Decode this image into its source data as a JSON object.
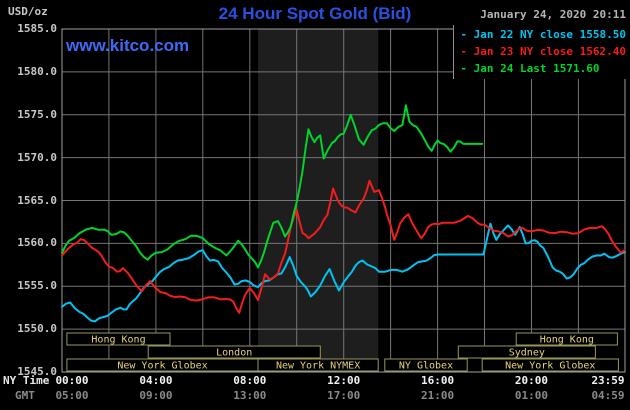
{
  "header": {
    "units": "USD/oz",
    "title": "24 Hour Spot Gold (Bid)",
    "datetime": "January 24, 2020 20:11",
    "watermark": "www.kitco.com"
  },
  "legend": [
    {
      "dash": "-",
      "label": "Jan 22 NY close 1558.50",
      "color": "#00c3f2"
    },
    {
      "dash": "-",
      "label": "Jan 23 NY close 1562.40",
      "color": "#f21d1d"
    },
    {
      "dash": "-",
      "label": "Jan 24 Last 1571.60",
      "color": "#00d32b"
    }
  ],
  "axes": {
    "ny_time_label": "NY Time",
    "gmt_label": "GMT",
    "y_ticks": [
      {
        "label": "1585.0",
        "v": 1585
      },
      {
        "label": "1580.0",
        "v": 1580
      },
      {
        "label": "1575.0",
        "v": 1575
      },
      {
        "label": "1570.0",
        "v": 1570
      },
      {
        "label": "1565.0",
        "v": 1565
      },
      {
        "label": "1560.0",
        "v": 1560
      },
      {
        "label": "1555.0",
        "v": 1555
      },
      {
        "label": "1550.0",
        "v": 1550
      },
      {
        "label": "1545.0",
        "v": 1545
      }
    ],
    "x_ticks": [
      {
        "ny": "00:00",
        "gmt": "05:00",
        "h": 0
      },
      {
        "ny": "04:00",
        "gmt": "09:00",
        "h": 4
      },
      {
        "ny": "08:00",
        "gmt": "13:00",
        "h": 8
      },
      {
        "ny": "12:00",
        "gmt": "17:00",
        "h": 12
      },
      {
        "ny": "16:00",
        "gmt": "21:00",
        "h": 16
      },
      {
        "ny": "20:00",
        "gmt": "01:00",
        "h": 20
      },
      {
        "ny": "23:59",
        "gmt": "04:59",
        "h": 23.983
      }
    ]
  },
  "sessions": [
    {
      "row": 1,
      "label": "Hong Kong",
      "start_h": 0.21,
      "end_h": 4.6
    },
    {
      "row": 1,
      "label": "Hong Kong",
      "start_h": 19.35,
      "end_h": 23.66
    },
    {
      "row": 2,
      "label": "London",
      "start_h": 3.67,
      "end_h": 11.0
    },
    {
      "row": 2,
      "label": "Sydney",
      "start_h": 16.88,
      "end_h": 22.72
    },
    {
      "row": 3,
      "label": "New York Globex",
      "start_h": 0.21,
      "end_h": 8.35
    },
    {
      "row": 3,
      "label": "New York NYMEX",
      "start_h": 8.35,
      "end_h": 13.47
    },
    {
      "row": 3,
      "label": "NY Globex",
      "start_h": 13.75,
      "end_h": 17.26
    },
    {
      "row": 3,
      "label": "New York Globex",
      "start_h": 17.9,
      "end_h": 23.7
    }
  ],
  "colors": {
    "background": "#000000",
    "plot_border": "#a0a0a0",
    "gridline": "#757575",
    "nymex_band": "#1e1e1e",
    "session_border": "#96965a",
    "session_text": "#e6d27c",
    "title_blue": "#2b50e0",
    "kitco_blue": "#3e6af5"
  },
  "chart_data": {
    "type": "line",
    "title": "24 Hour Spot Gold (Bid)",
    "xlabel": "NY Time / GMT",
    "ylabel": "USD/oz",
    "x_unit": "hours NY time",
    "xlim": [
      0,
      23.983
    ],
    "ylim": [
      1545,
      1585
    ],
    "grid": {
      "x_step_h": 2,
      "y_step": 5
    },
    "highlight_band_h": [
      8.35,
      13.47
    ],
    "legend_position": "top-right",
    "series": [
      {
        "name": "Jan 22 (NY close 1558.50)",
        "color": "#00c3f2",
        "points": [
          [
            0,
            1552.6
          ],
          [
            0.35,
            1553.1
          ],
          [
            0.75,
            1552.0
          ],
          [
            1.1,
            1551.3
          ],
          [
            1.4,
            1550.9
          ],
          [
            1.75,
            1551.4
          ],
          [
            2.1,
            1551.9
          ],
          [
            2.5,
            1552.5
          ],
          [
            2.75,
            1552.3
          ],
          [
            3.0,
            1553.2
          ],
          [
            3.35,
            1554.3
          ],
          [
            3.65,
            1555.2
          ],
          [
            4.0,
            1556.1
          ],
          [
            4.35,
            1557.0
          ],
          [
            4.75,
            1557.7
          ],
          [
            5.15,
            1558.1
          ],
          [
            5.65,
            1558.7
          ],
          [
            6.0,
            1559.2
          ],
          [
            6.3,
            1558.0
          ],
          [
            6.65,
            1557.9
          ],
          [
            7.0,
            1556.6
          ],
          [
            7.35,
            1555.2
          ],
          [
            7.65,
            1555.6
          ],
          [
            8.0,
            1555.5
          ],
          [
            8.35,
            1554.9
          ],
          [
            8.65,
            1555.6
          ],
          [
            9.0,
            1556.0
          ],
          [
            9.35,
            1556.5
          ],
          [
            9.7,
            1558.4
          ],
          [
            10.0,
            1556.2
          ],
          [
            10.35,
            1555.0
          ],
          [
            10.6,
            1553.8
          ],
          [
            11.0,
            1555.1
          ],
          [
            11.4,
            1557.0
          ],
          [
            11.8,
            1554.5
          ],
          [
            12.2,
            1556.2
          ],
          [
            12.5,
            1557.4
          ],
          [
            12.8,
            1558.0
          ],
          [
            13.2,
            1557.3
          ],
          [
            13.5,
            1556.7
          ],
          [
            14.0,
            1556.9
          ],
          [
            14.5,
            1556.7
          ],
          [
            15.0,
            1557.5
          ],
          [
            15.35,
            1557.9
          ],
          [
            15.7,
            1558.3
          ],
          [
            16.0,
            1558.7
          ],
          [
            17.0,
            1558.7
          ],
          [
            17.95,
            1558.7
          ],
          [
            18.1,
            1560.5
          ],
          [
            18.25,
            1562.3
          ],
          [
            18.5,
            1560.4
          ],
          [
            18.8,
            1561.5
          ],
          [
            19.0,
            1562.1
          ],
          [
            19.3,
            1561.0
          ],
          [
            19.5,
            1561.9
          ],
          [
            19.75,
            1560.0
          ],
          [
            20.0,
            1560.3
          ],
          [
            20.25,
            1560.2
          ],
          [
            20.5,
            1559.5
          ],
          [
            20.9,
            1557.2
          ],
          [
            21.2,
            1556.7
          ],
          [
            21.5,
            1555.9
          ],
          [
            21.8,
            1556.4
          ],
          [
            22.1,
            1557.5
          ],
          [
            22.4,
            1558.1
          ],
          [
            22.8,
            1558.6
          ],
          [
            23.1,
            1558.8
          ],
          [
            23.3,
            1558.4
          ],
          [
            23.6,
            1558.5
          ],
          [
            23.8,
            1558.8
          ],
          [
            23.983,
            1559.0
          ]
        ]
      },
      {
        "name": "Jan 23 (NY close 1562.40)",
        "color": "#f21d1d",
        "points": [
          [
            0,
            1558.6
          ],
          [
            0.5,
            1559.9
          ],
          [
            0.8,
            1560.5
          ],
          [
            1.1,
            1560.0
          ],
          [
            1.4,
            1559.3
          ],
          [
            1.7,
            1558.5
          ],
          [
            2.0,
            1557.3
          ],
          [
            2.35,
            1556.7
          ],
          [
            2.6,
            1557.1
          ],
          [
            3.0,
            1555.8
          ],
          [
            3.4,
            1554.4
          ],
          [
            3.75,
            1555.6
          ],
          [
            4.2,
            1554.3
          ],
          [
            4.6,
            1553.9
          ],
          [
            5.0,
            1553.8
          ],
          [
            5.5,
            1553.4
          ],
          [
            6.0,
            1553.5
          ],
          [
            6.5,
            1553.7
          ],
          [
            7.0,
            1553.5
          ],
          [
            7.3,
            1553.2
          ],
          [
            7.55,
            1551.9
          ],
          [
            7.8,
            1554.0
          ],
          [
            8.0,
            1554.8
          ],
          [
            8.35,
            1553.4
          ],
          [
            8.65,
            1556.4
          ],
          [
            8.85,
            1555.8
          ],
          [
            9.2,
            1556.5
          ],
          [
            9.5,
            1558.8
          ],
          [
            9.75,
            1562.0
          ],
          [
            10.0,
            1563.9
          ],
          [
            10.25,
            1561.2
          ],
          [
            10.5,
            1560.6
          ],
          [
            11.0,
            1561.9
          ],
          [
            11.3,
            1563.3
          ],
          [
            11.55,
            1566.4
          ],
          [
            11.75,
            1565.0
          ],
          [
            12.0,
            1564.2
          ],
          [
            12.3,
            1563.9
          ],
          [
            12.5,
            1563.6
          ],
          [
            12.85,
            1565.2
          ],
          [
            13.1,
            1567.3
          ],
          [
            13.3,
            1566.0
          ],
          [
            13.5,
            1566.2
          ],
          [
            13.75,
            1564.3
          ],
          [
            14.0,
            1562.1
          ],
          [
            14.15,
            1560.4
          ],
          [
            14.4,
            1562.3
          ],
          [
            14.75,
            1563.4
          ],
          [
            15.1,
            1561.5
          ],
          [
            15.3,
            1560.6
          ],
          [
            15.6,
            1561.9
          ],
          [
            15.9,
            1562.3
          ],
          [
            16.2,
            1562.4
          ],
          [
            16.7,
            1562.4
          ],
          [
            17.3,
            1563.2
          ],
          [
            17.7,
            1562.4
          ],
          [
            18.0,
            1562.2
          ],
          [
            18.2,
            1561.8
          ],
          [
            18.6,
            1561.4
          ],
          [
            19.0,
            1560.8
          ],
          [
            19.3,
            1561.3
          ],
          [
            19.6,
            1561.8
          ],
          [
            20.0,
            1561.4
          ],
          [
            20.5,
            1561.5
          ],
          [
            21.0,
            1561.2
          ],
          [
            21.5,
            1561.3
          ],
          [
            22.0,
            1561.2
          ],
          [
            22.5,
            1561.8
          ],
          [
            23.0,
            1562.0
          ],
          [
            23.3,
            1561.0
          ],
          [
            23.6,
            1559.6
          ],
          [
            23.8,
            1558.9
          ],
          [
            23.983,
            1559.2
          ]
        ]
      },
      {
        "name": "Jan 24 (Last 1571.60)",
        "color": "#00d32b",
        "points": [
          [
            0,
            1558.9
          ],
          [
            0.3,
            1560.3
          ],
          [
            0.75,
            1561.2
          ],
          [
            1.3,
            1561.8
          ],
          [
            1.8,
            1561.6
          ],
          [
            2.1,
            1561.0
          ],
          [
            2.5,
            1561.4
          ],
          [
            2.8,
            1560.9
          ],
          [
            3.0,
            1560.2
          ],
          [
            3.3,
            1559.0
          ],
          [
            3.65,
            1558.1
          ],
          [
            4.0,
            1558.9
          ],
          [
            4.5,
            1559.3
          ],
          [
            5.0,
            1560.3
          ],
          [
            5.5,
            1560.9
          ],
          [
            6.0,
            1560.6
          ],
          [
            6.5,
            1559.5
          ],
          [
            7.0,
            1558.6
          ],
          [
            7.5,
            1560.3
          ],
          [
            7.8,
            1559.3
          ],
          [
            8.1,
            1558.2
          ],
          [
            8.35,
            1557.2
          ],
          [
            8.6,
            1558.9
          ],
          [
            9.0,
            1562.4
          ],
          [
            9.2,
            1562.6
          ],
          [
            9.5,
            1560.8
          ],
          [
            9.75,
            1562.0
          ],
          [
            10.0,
            1564.8
          ],
          [
            10.25,
            1568.5
          ],
          [
            10.5,
            1573.3
          ],
          [
            10.75,
            1571.8
          ],
          [
            11.0,
            1572.6
          ],
          [
            11.15,
            1569.9
          ],
          [
            11.5,
            1571.7
          ],
          [
            11.75,
            1572.4
          ],
          [
            12.0,
            1572.8
          ],
          [
            12.3,
            1575.0
          ],
          [
            12.65,
            1572.1
          ],
          [
            12.85,
            1571.5
          ],
          [
            13.2,
            1573.2
          ],
          [
            13.5,
            1573.8
          ],
          [
            13.85,
            1574.0
          ],
          [
            14.15,
            1573.1
          ],
          [
            14.5,
            1573.8
          ],
          [
            14.65,
            1576.1
          ],
          [
            14.8,
            1574.2
          ],
          [
            15.1,
            1573.6
          ],
          [
            15.5,
            1571.8
          ],
          [
            15.75,
            1570.8
          ],
          [
            16.0,
            1572.0
          ],
          [
            16.25,
            1571.6
          ],
          [
            16.55,
            1570.7
          ],
          [
            16.85,
            1571.9
          ],
          [
            17.1,
            1571.6
          ],
          [
            17.9,
            1571.6
          ]
        ]
      }
    ]
  }
}
